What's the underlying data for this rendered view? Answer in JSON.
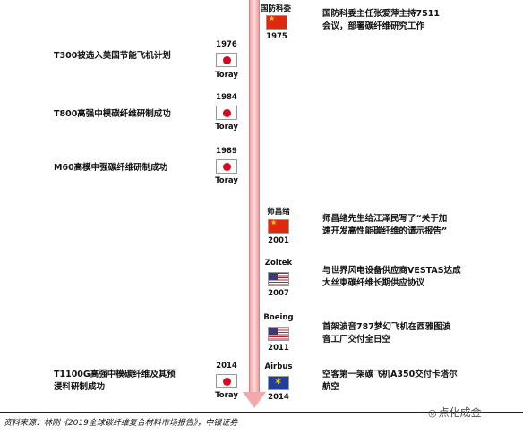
{
  "events": [
    {
      "side": "right",
      "label": "国防科委",
      "year": "1975",
      "flag": "flag-cn",
      "text": [
        "国防科委主任张爱萍主持7511",
        "会议，部署碳纤维研究工作"
      ]
    },
    {
      "side": "left",
      "label": "Toray",
      "year": "1976",
      "flag": "flag-jp",
      "text": [
        "T300被选入美国节能飞机计划"
      ]
    },
    {
      "side": "left",
      "label": "Toray",
      "year": "1984",
      "flag": "flag-jp",
      "text": [
        "T800高强中模碳纤维研制成功"
      ]
    },
    {
      "side": "left",
      "label": "Toray",
      "year": "1989",
      "flag": "flag-jp",
      "text": [
        "M60高模中强碳纤维研制成功"
      ]
    },
    {
      "side": "right",
      "label": "师昌绪",
      "year": "2001",
      "flag": "flag-cn",
      "text": [
        "师昌绪先生给江泽民写了“关于加",
        "速开发高性能碳纤维的请示报告”"
      ]
    },
    {
      "side": "right",
      "label": "Zoltek",
      "year": "2007",
      "flag": "flag-us",
      "text": [
        "与世界风电设备供应商VESTAS达成",
        "大丝束碳纤维长期供应协议"
      ]
    },
    {
      "side": "right",
      "label": "Boeing",
      "year": "2011",
      "flag": "flag-us",
      "text": [
        "首架波音787梦幻飞机在西雅图波",
        "音工厂交付全日空"
      ]
    },
    {
      "side": "left",
      "label": "Toray",
      "year": "2014",
      "flag": "flag-jp",
      "text": [
        "T1100G高强中模碳纤维及其预",
        "浸料研制成功"
      ]
    },
    {
      "side": "right",
      "label": "Airbus",
      "year": "2014",
      "flag": "flag-eu",
      "text": [
        "空客第一架碳飞机A350交付卡塔尔",
        "航空"
      ]
    }
  ],
  "source": "资料来源：林刚《2019全球碳纤维复合材料市场报告》，中银证券",
  "watermark": "点化成金"
}
